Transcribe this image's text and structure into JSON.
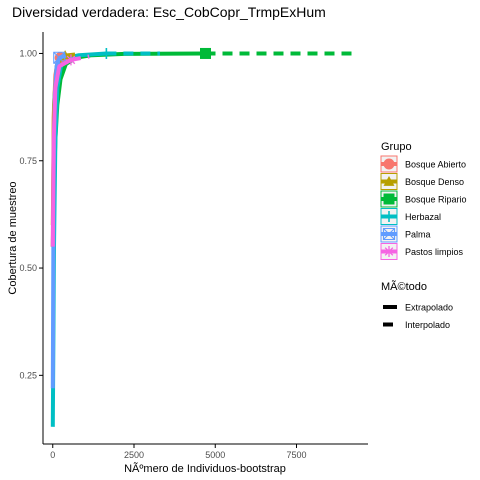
{
  "chart_data": {
    "type": "line",
    "title": "Diversidad verdadera: Esc_CobCopr_TrmpExHum",
    "xlabel": "NÃºmero de Individuos-bootstrap",
    "ylabel": "Cobertura de muestreo",
    "xlim": [
      -300,
      9700
    ],
    "ylim": [
      0.09,
      1.05
    ],
    "x_ticks": [
      0,
      2500,
      5000,
      7500
    ],
    "x_tick_labels": [
      "0",
      "2500",
      "5000",
      "7500"
    ],
    "y_ticks": [
      0.25,
      0.5,
      0.75,
      1.0
    ],
    "y_tick_labels": [
      "0.25",
      "0.50",
      "0.75",
      "1.00"
    ],
    "grid": false,
    "legend_position": "right",
    "legend_groups": [
      {
        "title": "Grupo",
        "entries": [
          {
            "label": "Bosque Abierto",
            "color": "#F8766D",
            "shape": "circle"
          },
          {
            "label": "Bosque Denso",
            "color": "#B79F00",
            "shape": "triangle"
          },
          {
            "label": "Bosque Ripario",
            "color": "#00BA38",
            "shape": "square"
          },
          {
            "label": "Herbazal",
            "color": "#00BFC4",
            "shape": "plus"
          },
          {
            "label": "Palma",
            "color": "#619CFF",
            "shape": "boxcross"
          },
          {
            "label": "Pastos limpios",
            "color": "#F564E3",
            "shape": "asterisk"
          }
        ]
      },
      {
        "title": "MÃ©todo",
        "entries": [
          {
            "label": "Extrapolado",
            "linetype": "solid"
          },
          {
            "label": "Interpolado",
            "linetype": "dashed"
          }
        ]
      }
    ],
    "series": [
      {
        "name": "Bosque Ripario",
        "color": "#00BA38",
        "reference_point": [
          4700,
          1.0
        ],
        "interpolado": [
          [
            0,
            0.55
          ],
          [
            40,
            0.7
          ],
          [
            80,
            0.8
          ],
          [
            140,
            0.88
          ],
          [
            240,
            0.94
          ],
          [
            400,
            0.975
          ],
          [
            700,
            0.99
          ],
          [
            1200,
            0.996
          ],
          [
            2200,
            0.999
          ],
          [
            4700,
            1.0
          ]
        ],
        "extrapolado": [
          [
            4700,
            1.0
          ],
          [
            9400,
            1.0
          ]
        ]
      },
      {
        "name": "Herbazal",
        "color": "#00BFC4",
        "reference_point": [
          1650,
          1.0
        ],
        "interpolado": [
          [
            0,
            0.13
          ],
          [
            40,
            0.55
          ],
          [
            80,
            0.8
          ],
          [
            140,
            0.92
          ],
          [
            250,
            0.97
          ],
          [
            450,
            0.99
          ],
          [
            800,
            0.996
          ],
          [
            1650,
            1.0
          ]
        ],
        "extrapolado": [
          [
            1650,
            1.0
          ],
          [
            3300,
            1.0
          ]
        ]
      },
      {
        "name": "Bosque Abierto",
        "color": "#F8766D",
        "reference_point": [
          230,
          0.99
        ],
        "interpolado": [
          [
            0,
            0.55
          ],
          [
            30,
            0.85
          ],
          [
            80,
            0.95
          ],
          [
            150,
            0.98
          ],
          [
            230,
            0.99
          ]
        ],
        "extrapolado": [
          [
            230,
            0.99
          ],
          [
            460,
            0.995
          ]
        ]
      },
      {
        "name": "Bosque Denso",
        "color": "#B79F00",
        "reference_point": [
          380,
          0.995
        ],
        "interpolado": [
          [
            0,
            0.6
          ],
          [
            40,
            0.88
          ],
          [
            120,
            0.97
          ],
          [
            250,
            0.99
          ],
          [
            380,
            0.995
          ]
        ],
        "extrapolado": [
          [
            380,
            0.995
          ],
          [
            760,
            0.998
          ]
        ]
      },
      {
        "name": "Palma",
        "color": "#619CFF",
        "reference_point": [
          200,
          0.99
        ],
        "interpolado": [
          [
            0,
            0.22
          ],
          [
            25,
            0.7
          ],
          [
            60,
            0.9
          ],
          [
            120,
            0.97
          ],
          [
            200,
            0.99
          ]
        ],
        "extrapolado": [
          [
            200,
            0.99
          ],
          [
            400,
            0.995
          ]
        ]
      },
      {
        "name": "Pastos limpios",
        "color": "#F564E3",
        "reference_point": [
          560,
          0.985
        ],
        "interpolado": [
          [
            0,
            0.55
          ],
          [
            30,
            0.8
          ],
          [
            80,
            0.92
          ],
          [
            200,
            0.97
          ],
          [
            560,
            0.985
          ]
        ],
        "extrapolado": [
          [
            560,
            0.985
          ],
          [
            1120,
            0.993
          ]
        ]
      }
    ]
  }
}
